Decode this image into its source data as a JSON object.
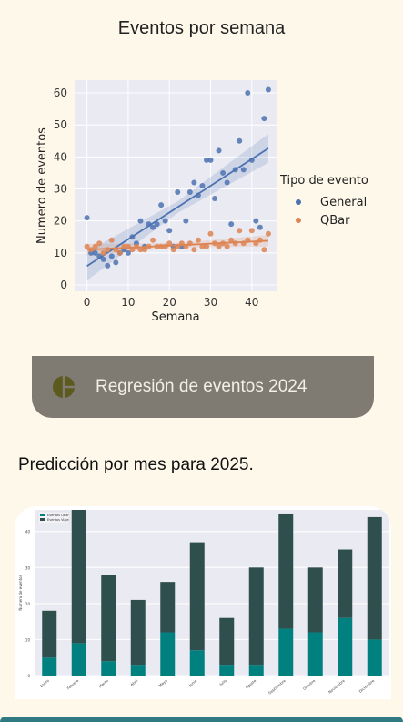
{
  "page": {
    "title": "Eventos por semana"
  },
  "regression_button": {
    "label": "Regresión de eventos 2024",
    "icon": "chart-pie-icon"
  },
  "section": {
    "heading": "Predicción por mes para 2025."
  },
  "colors": {
    "general": "#4c72b0",
    "qbar": "#dd8452",
    "bar_qbar": "#00807f",
    "bar_viaje": "#2f4f4f",
    "plot_bg": "#eaeaf2",
    "button_bg": "#7f7b72",
    "icon": "#5c5a1e"
  },
  "chart_data": [
    {
      "type": "scatter",
      "xlabel": "Semana",
      "ylabel": "Numero de eventos",
      "xlim": [
        -3,
        46
      ],
      "ylim": [
        -2,
        64
      ],
      "xticks": [
        0,
        10,
        20,
        30,
        40
      ],
      "yticks": [
        0,
        10,
        20,
        30,
        40,
        50,
        60
      ],
      "grid": true,
      "legend": {
        "title": "Tipo de evento",
        "placement": "right"
      },
      "series": [
        {
          "name": "General",
          "x": [
            0,
            1,
            2,
            3,
            4,
            5,
            6,
            7,
            8,
            9,
            10,
            11,
            12,
            13,
            14,
            15,
            16,
            17,
            18,
            19,
            20,
            21,
            22,
            23,
            24,
            25,
            26,
            27,
            28,
            29,
            30,
            31,
            32,
            33,
            34,
            35,
            36,
            37,
            38,
            39,
            40,
            41,
            42,
            43,
            44
          ],
          "y": [
            21,
            10,
            10,
            9,
            8,
            6,
            9,
            7,
            10,
            11,
            10,
            15,
            13,
            20,
            12,
            19,
            18,
            19,
            25,
            20,
            17,
            12,
            29,
            12,
            20,
            29,
            32,
            28,
            31,
            39,
            39,
            27,
            42,
            35,
            32,
            19,
            36,
            45,
            36,
            60,
            39,
            20,
            18,
            52,
            61
          ],
          "trend": [
            5.9,
            42.7
          ]
        },
        {
          "name": "QBar",
          "x": [
            0,
            1,
            2,
            3,
            4,
            5,
            6,
            7,
            8,
            9,
            10,
            11,
            12,
            13,
            14,
            15,
            16,
            17,
            18,
            19,
            20,
            21,
            22,
            23,
            24,
            25,
            26,
            27,
            28,
            29,
            30,
            31,
            32,
            33,
            34,
            35,
            36,
            37,
            38,
            39,
            40,
            41,
            42,
            43,
            44
          ],
          "y": [
            12,
            11,
            12,
            13,
            10,
            11,
            14,
            11,
            10,
            12,
            12,
            11,
            12,
            11,
            11,
            12,
            14,
            12,
            12,
            12,
            13,
            11,
            12,
            13,
            12,
            13,
            11,
            14,
            12,
            12,
            16,
            13,
            12,
            13,
            12,
            14,
            13,
            17,
            13,
            14,
            17,
            13,
            14,
            11,
            16
          ],
          "trend": [
            11.0,
            13.8
          ]
        }
      ]
    },
    {
      "type": "bar",
      "stacked": true,
      "ylabel": "Numero de eventos",
      "legend": {
        "placement": "top-left"
      },
      "categories": [
        "Enero",
        "Febrero",
        "Marzo",
        "Abril",
        "Mayo",
        "Junio",
        "Julio",
        "Agosto",
        "Septiembre",
        "Octubre",
        "Noviembre",
        "Diciembre"
      ],
      "yticks": [
        0,
        10,
        20,
        30,
        40
      ],
      "series": [
        {
          "name": "Eventos QBar",
          "values": [
            5,
            9,
            4,
            3,
            12,
            7,
            3,
            3,
            13,
            12,
            16,
            10
          ]
        },
        {
          "name": "Eventos Viaje",
          "values": [
            13,
            37,
            24,
            18,
            14,
            30,
            13,
            27,
            32,
            18,
            19,
            34
          ]
        }
      ]
    }
  ]
}
